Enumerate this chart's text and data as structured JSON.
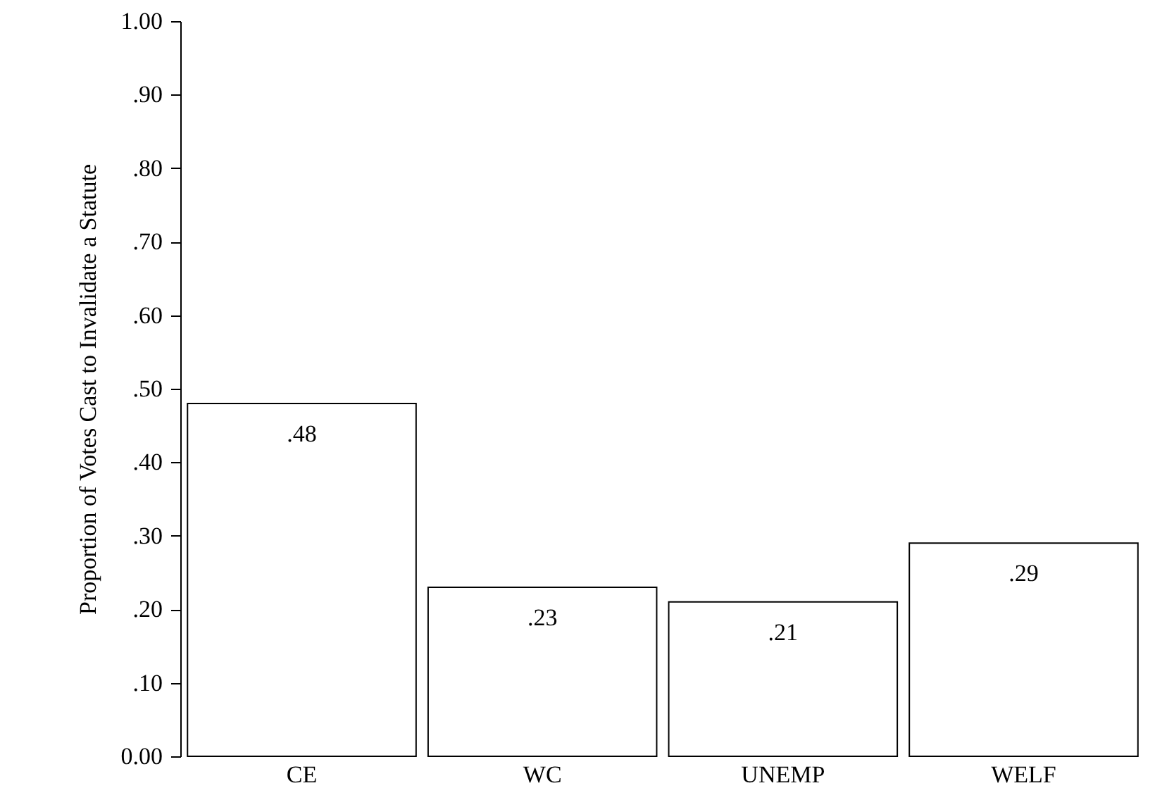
{
  "chart_data": {
    "type": "bar",
    "ylabel": "Proportion of Votes Cast to Invalidate a Statute",
    "categories": [
      "CE",
      "WC",
      "UNEMP",
      "WELF"
    ],
    "values": [
      0.48,
      0.23,
      0.21,
      0.29
    ],
    "value_labels": [
      ".48",
      ".23",
      ".21",
      ".29"
    ],
    "color": "#ffffff",
    "ylim": [
      0,
      1
    ],
    "yticks": [
      {
        "value": 0,
        "label": "0.00"
      },
      {
        "value": 0.1,
        "label": ".10"
      },
      {
        "value": 0.2,
        "label": ".20"
      },
      {
        "value": 0.3,
        "label": ".30"
      },
      {
        "value": 0.4,
        "label": ".40"
      },
      {
        "value": 0.5,
        "label": ".50"
      },
      {
        "value": 0.6,
        "label": ".60"
      },
      {
        "value": 0.7,
        "label": ".70"
      },
      {
        "value": 0.8,
        "label": ".80"
      },
      {
        "value": 0.9,
        "label": ".90"
      },
      {
        "value": 1,
        "label": "1.00"
      }
    ],
    "grid": false
  }
}
